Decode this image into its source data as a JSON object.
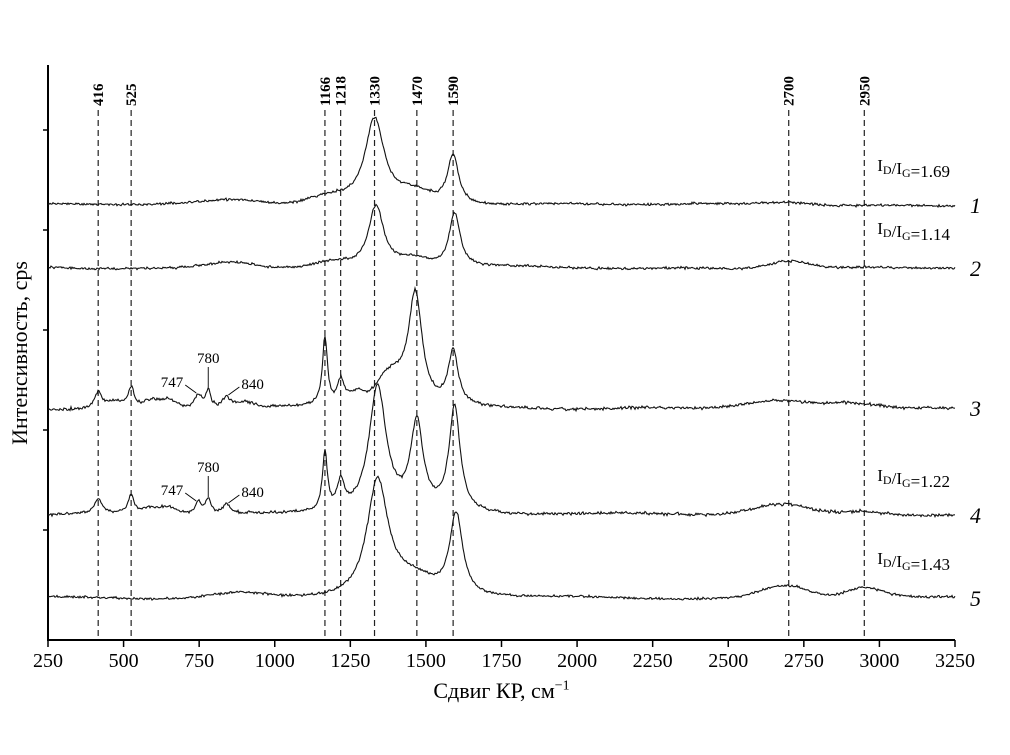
{
  "figure": {
    "background": "#ffffff",
    "xlabel_base": "Сдвиг КР, см",
    "xlabel_sup": "−1",
    "ylabel": "Интенсивность, cps"
  },
  "chart_data": {
    "type": "line",
    "title": "",
    "xlabel": "Сдвиг КР, см⁻¹",
    "ylabel": "Интенсивность, cps",
    "x_range": [
      250,
      3250
    ],
    "x_ticks": [
      "250",
      "500",
      "750",
      "1000",
      "1250",
      "1500",
      "1750",
      "2000",
      "2250",
      "2500",
      "2750",
      "3000",
      "3250"
    ],
    "grid": false,
    "legend_position": "none",
    "line_color": "#111111",
    "guide_line_color": "#222222",
    "guide_lines": [
      {
        "cm": 416,
        "label": "416"
      },
      {
        "cm": 525,
        "label": "525"
      },
      {
        "cm": 1166,
        "label": "1166"
      },
      {
        "cm": 1218,
        "label": "1218"
      },
      {
        "cm": 1330,
        "label": "1330"
      },
      {
        "cm": 1470,
        "label": "1470"
      },
      {
        "cm": 1590,
        "label": "1590"
      },
      {
        "cm": 2700,
        "label": "2700"
      },
      {
        "cm": 2950,
        "label": "2950"
      }
    ],
    "ratio_notation": {
      "symbol": "I",
      "num_sub": "D",
      "den_sub": "G",
      "sep": "/",
      "eq": "="
    },
    "series": [
      {
        "label": "1",
        "id_ig": "1.69",
        "seed": 11,
        "baseline": 205,
        "noise": 1.8,
        "peaks": [
          [
            1330,
            86,
            38,
            "l"
          ],
          [
            1590,
            50,
            22,
            "l"
          ],
          [
            1180,
            8,
            70,
            "g"
          ],
          [
            1460,
            12,
            60,
            "g"
          ],
          [
            870,
            4,
            90,
            "g"
          ],
          [
            2700,
            3,
            80,
            "g"
          ]
        ]
      },
      {
        "label": "2",
        "id_ig": "1.14",
        "seed": 22,
        "baseline": 268,
        "noise": 1.8,
        "peaks": [
          [
            1335,
            62,
            30,
            "l"
          ],
          [
            1595,
            54,
            22,
            "l"
          ],
          [
            1460,
            8,
            50,
            "g"
          ],
          [
            1180,
            5,
            60,
            "g"
          ],
          [
            860,
            7,
            80,
            "g"
          ],
          [
            2700,
            8,
            70,
            "g"
          ]
        ]
      },
      {
        "label": "3",
        "id_ig": null,
        "seed": 33,
        "baseline": 408,
        "noise": 2.2,
        "peaks": [
          [
            416,
            17,
            14,
            "l"
          ],
          [
            470,
            6,
            25,
            "g"
          ],
          [
            525,
            21,
            12,
            "l"
          ],
          [
            590,
            7,
            25,
            "g"
          ],
          [
            650,
            8,
            25,
            "g"
          ],
          [
            747,
            13,
            13,
            "l"
          ],
          [
            780,
            17,
            10,
            "l"
          ],
          [
            840,
            11,
            14,
            "l"
          ],
          [
            900,
            5,
            30,
            "g"
          ],
          [
            1166,
            68,
            10,
            "l"
          ],
          [
            1218,
            25,
            14,
            "l"
          ],
          [
            1270,
            12,
            25,
            "g"
          ],
          [
            1380,
            30,
            45,
            "g"
          ],
          [
            1465,
            112,
            28,
            "l"
          ],
          [
            1590,
            54,
            20,
            "l"
          ],
          [
            2650,
            7,
            90,
            "g"
          ],
          [
            2900,
            4,
            80,
            "g"
          ]
        ]
      },
      {
        "label": "4",
        "id_ig": "1.22",
        "seed": 44,
        "baseline": 515,
        "noise": 2.2,
        "peaks": [
          [
            416,
            15,
            14,
            "l"
          ],
          [
            525,
            19,
            12,
            "l"
          ],
          [
            590,
            6,
            25,
            "g"
          ],
          [
            650,
            7,
            25,
            "g"
          ],
          [
            747,
            12,
            13,
            "l"
          ],
          [
            780,
            15,
            10,
            "l"
          ],
          [
            840,
            10,
            14,
            "l"
          ],
          [
            1166,
            58,
            10,
            "l"
          ],
          [
            1218,
            28,
            14,
            "l"
          ],
          [
            1340,
            128,
            35,
            "l"
          ],
          [
            1470,
            88,
            25,
            "l"
          ],
          [
            1595,
            105,
            22,
            "l"
          ],
          [
            2680,
            10,
            90,
            "g"
          ],
          [
            2950,
            5,
            70,
            "g"
          ]
        ]
      },
      {
        "label": "5",
        "id_ig": "1.43",
        "seed": 55,
        "baseline": 598,
        "noise": 1.8,
        "peaks": [
          [
            1340,
            118,
            42,
            "l"
          ],
          [
            1600,
            82,
            26,
            "l"
          ],
          [
            1460,
            15,
            60,
            "g"
          ],
          [
            880,
            5,
            90,
            "g"
          ],
          [
            2690,
            13,
            80,
            "g"
          ],
          [
            2950,
            11,
            60,
            "g"
          ]
        ]
      }
    ],
    "annotations": [
      {
        "text": "747",
        "series": "3",
        "cm": 747,
        "placement": "left"
      },
      {
        "text": "780",
        "series": "3",
        "cm": 780,
        "placement": "top"
      },
      {
        "text": "840",
        "series": "3",
        "cm": 840,
        "placement": "right"
      },
      {
        "text": "747",
        "series": "4",
        "cm": 747,
        "placement": "left"
      },
      {
        "text": "780",
        "series": "4",
        "cm": 780,
        "placement": "top"
      },
      {
        "text": "840",
        "series": "4",
        "cm": 840,
        "placement": "right"
      }
    ]
  }
}
